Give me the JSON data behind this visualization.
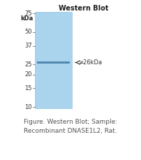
{
  "title": "Western Blot",
  "lane_color": "#aad4ee",
  "lane_edge_color": "#88bbdd",
  "kda_label": "kDa",
  "markers": [
    75,
    50,
    37,
    25,
    20,
    15,
    10
  ],
  "band_label": "≠26kDa",
  "band_color": "#4a7fa8",
  "caption_line1": "Figure. Western Blot; Sample:",
  "caption_line2": "Recombinant DNASE1L2, Rat.",
  "bg_color": "#ffffff",
  "caption_color": "#555555"
}
